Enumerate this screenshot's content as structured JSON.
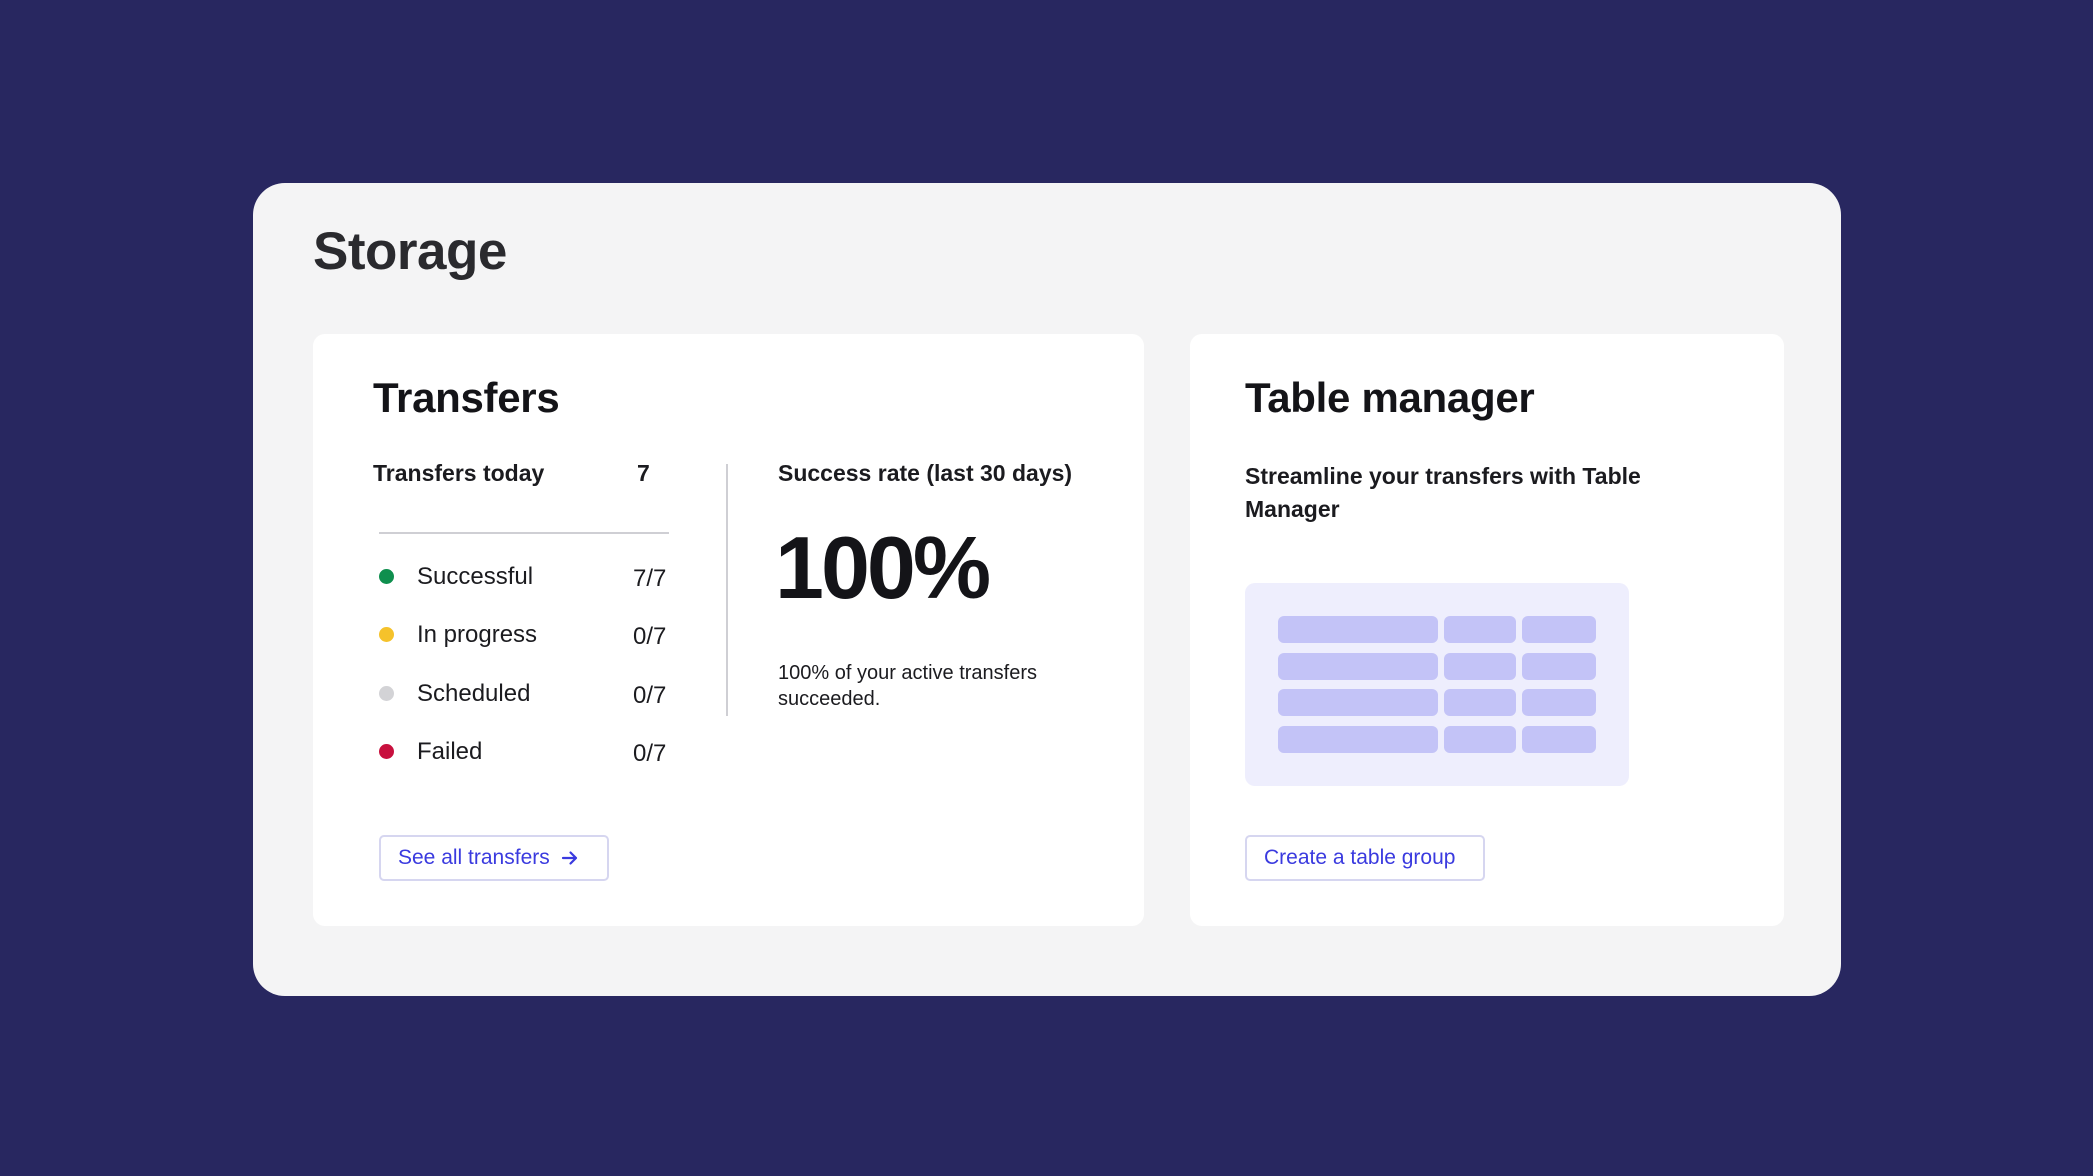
{
  "page": {
    "title": "Storage"
  },
  "transfers": {
    "title": "Transfers",
    "today_label": "Transfers today",
    "today_value": "7",
    "statuses": [
      {
        "label": "Successful",
        "value": "7/7",
        "color": "#0f8f4e"
      },
      {
        "label": "In progress",
        "value": "0/7",
        "color": "#f5c22b"
      },
      {
        "label": "Scheduled",
        "value": "0/7",
        "color": "#d3d3d6"
      },
      {
        "label": "Failed",
        "value": "0/7",
        "color": "#c8103e"
      }
    ],
    "success_rate_label": "Success rate (last 30 days)",
    "success_rate_value": "100%",
    "success_rate_note": "100% of your active transfers succeeded.",
    "see_all_label": "See all transfers"
  },
  "table_manager": {
    "title": "Table manager",
    "promo_text": "Streamline your transfers with Table Manager",
    "create_group_label": "Create a table group"
  },
  "colors": {
    "background": "#282760",
    "panel": "#f4f4f5",
    "card": "#ffffff",
    "accent": "#3a3adf",
    "illustration_bg": "#eeeefd",
    "illustration_cell": "#c3c3f7"
  }
}
